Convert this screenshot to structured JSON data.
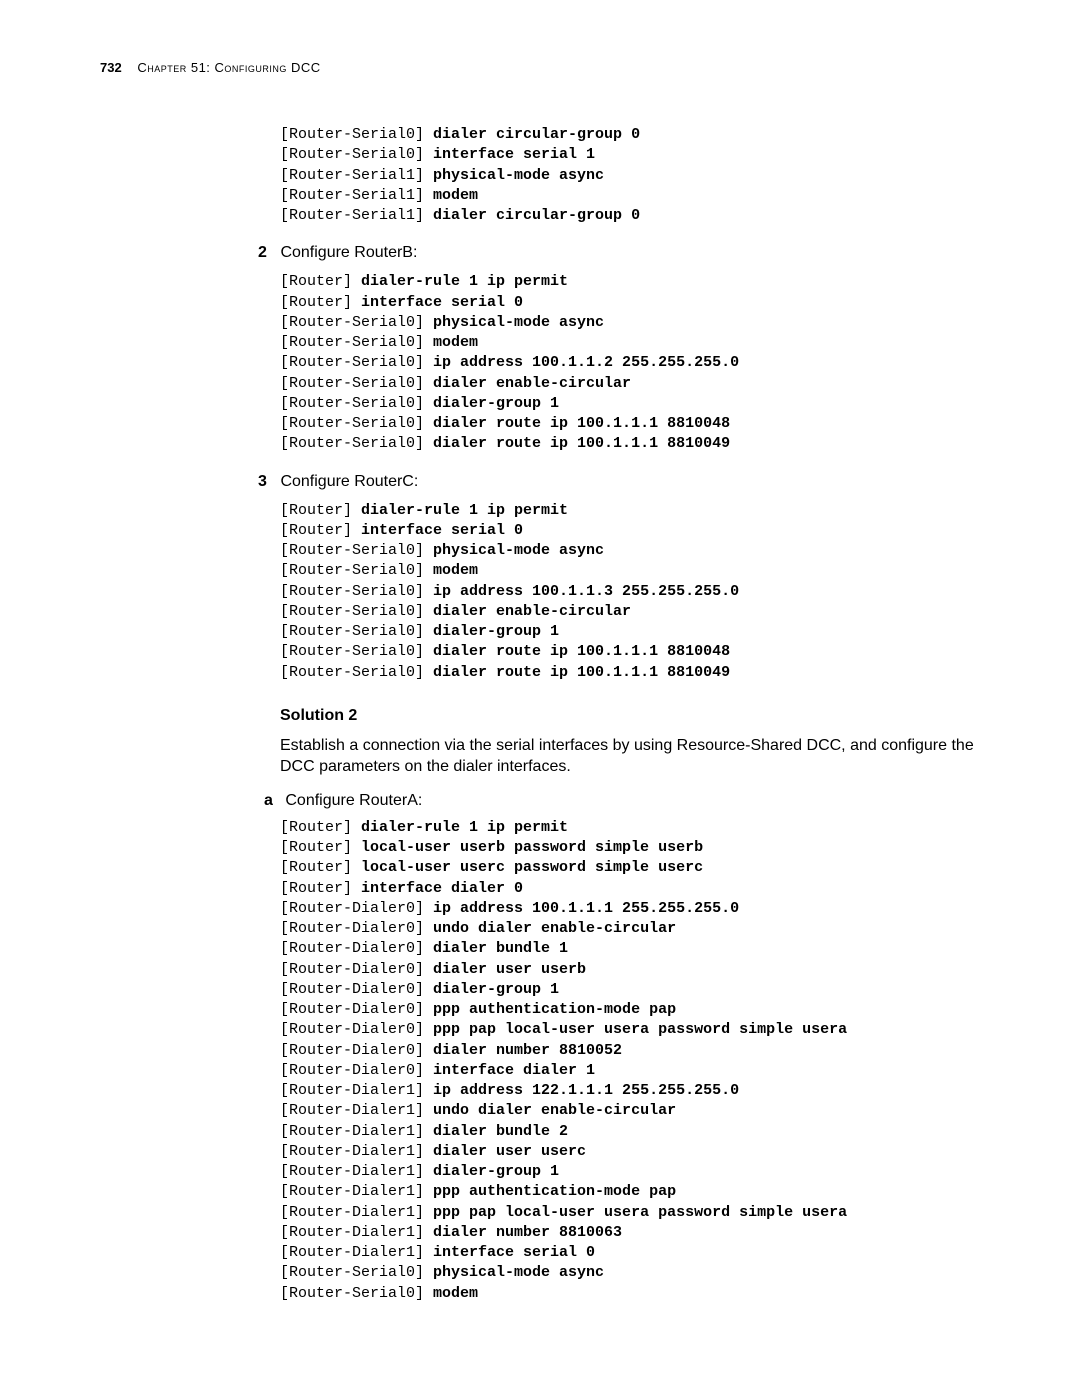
{
  "header": {
    "pageNumber": "732",
    "chapterLabel": "Chapter 51: Configuring DCC"
  },
  "block1": {
    "lines": [
      {
        "prompt": "[Router-Serial0] ",
        "cmd": "dialer circular-group 0"
      },
      {
        "prompt": "[Router-Serial0] ",
        "cmd": "interface serial 1"
      },
      {
        "prompt": "[Router-Serial1] ",
        "cmd": "physical-mode async"
      },
      {
        "prompt": "[Router-Serial1] ",
        "cmd": "modem"
      },
      {
        "prompt": "[Router-Serial1] ",
        "cmd": "dialer circular-group 0"
      }
    ]
  },
  "step2": {
    "num": "2",
    "text": "Configure RouterB:"
  },
  "block2": {
    "lines": [
      {
        "prompt": "[Router] ",
        "cmd": "dialer-rule 1 ip permit"
      },
      {
        "prompt": "[Router] ",
        "cmd": "interface serial 0"
      },
      {
        "prompt": "[Router-Serial0] ",
        "cmd": "physical-mode async"
      },
      {
        "prompt": "[Router-Serial0] ",
        "cmd": "modem"
      },
      {
        "prompt": "[Router-Serial0] ",
        "cmd": "ip address 100.1.1.2 255.255.255.0"
      },
      {
        "prompt": "[Router-Serial0] ",
        "cmd": "dialer enable-circular"
      },
      {
        "prompt": "[Router-Serial0] ",
        "cmd": "dialer-group 1"
      },
      {
        "prompt": "[Router-Serial0] ",
        "cmd": "dialer route ip 100.1.1.1 8810048"
      },
      {
        "prompt": "[Router-Serial0] ",
        "cmd": "dialer route ip 100.1.1.1 8810049"
      }
    ]
  },
  "step3": {
    "num": "3",
    "text": "Configure RouterC:"
  },
  "block3": {
    "lines": [
      {
        "prompt": "[Router] ",
        "cmd": "dialer-rule 1 ip permit"
      },
      {
        "prompt": "[Router] ",
        "cmd": "interface serial 0"
      },
      {
        "prompt": "[Router-Serial0] ",
        "cmd": "physical-mode async"
      },
      {
        "prompt": "[Router-Serial0] ",
        "cmd": "modem"
      },
      {
        "prompt": "[Router-Serial0] ",
        "cmd": "ip address 100.1.1.3 255.255.255.0"
      },
      {
        "prompt": "[Router-Serial0] ",
        "cmd": "dialer enable-circular"
      },
      {
        "prompt": "[Router-Serial0] ",
        "cmd": "dialer-group 1"
      },
      {
        "prompt": "[Router-Serial0] ",
        "cmd": "dialer route ip 100.1.1.1 8810048"
      },
      {
        "prompt": "[Router-Serial0] ",
        "cmd": "dialer route ip 100.1.1.1 8810049"
      }
    ]
  },
  "solution2": {
    "heading": "Solution 2",
    "para": "Establish a connection via the serial interfaces by using Resource-Shared DCC, and configure the DCC parameters on the dialer interfaces."
  },
  "substepA": {
    "letter": "a",
    "text": "Configure RouterA:"
  },
  "block4": {
    "lines": [
      {
        "prompt": "[Router] ",
        "cmd": "dialer-rule 1 ip permit"
      },
      {
        "prompt": "[Router] ",
        "cmd": "local-user userb password simple userb"
      },
      {
        "prompt": "[Router] ",
        "cmd": "local-user userc password simple userc"
      },
      {
        "prompt": "[Router] ",
        "cmd": "interface dialer 0"
      },
      {
        "prompt": "[Router-Dialer0] ",
        "cmd": "ip address 100.1.1.1 255.255.255.0"
      },
      {
        "prompt": "[Router-Dialer0] ",
        "cmd": "undo dialer enable-circular"
      },
      {
        "prompt": "[Router-Dialer0] ",
        "cmd": "dialer bundle 1"
      },
      {
        "prompt": "[Router-Dialer0] ",
        "cmd": "dialer user userb"
      },
      {
        "prompt": "[Router-Dialer0] ",
        "cmd": "dialer-group 1"
      },
      {
        "prompt": "[Router-Dialer0] ",
        "cmd": "ppp authentication-mode pap"
      },
      {
        "prompt": "[Router-Dialer0] ",
        "cmd": "ppp pap local-user usera password simple usera"
      },
      {
        "prompt": "[Router-Dialer0] ",
        "cmd": "dialer number 8810052"
      },
      {
        "prompt": "[Router-Dialer0] ",
        "cmd": "interface dialer 1"
      },
      {
        "prompt": "[Router-Dialer1] ",
        "cmd": "ip address 122.1.1.1 255.255.255.0"
      },
      {
        "prompt": "[Router-Dialer1] ",
        "cmd": "undo dialer enable-circular"
      },
      {
        "prompt": "[Router-Dialer1] ",
        "cmd": "dialer bundle 2"
      },
      {
        "prompt": "[Router-Dialer1] ",
        "cmd": "dialer user userc"
      },
      {
        "prompt": "[Router-Dialer1] ",
        "cmd": "dialer-group 1"
      },
      {
        "prompt": "[Router-Dialer1] ",
        "cmd": "ppp authentication-mode pap"
      },
      {
        "prompt": "[Router-Dialer1] ",
        "cmd": "ppp pap local-user usera password simple usera"
      },
      {
        "prompt": "[Router-Dialer1] ",
        "cmd": "dialer number 8810063"
      },
      {
        "prompt": "[Router-Dialer1] ",
        "cmd": "interface serial 0"
      },
      {
        "prompt": "[Router-Serial0] ",
        "cmd": "physical-mode async"
      },
      {
        "prompt": "[Router-Serial0] ",
        "cmd": "modem"
      }
    ]
  }
}
